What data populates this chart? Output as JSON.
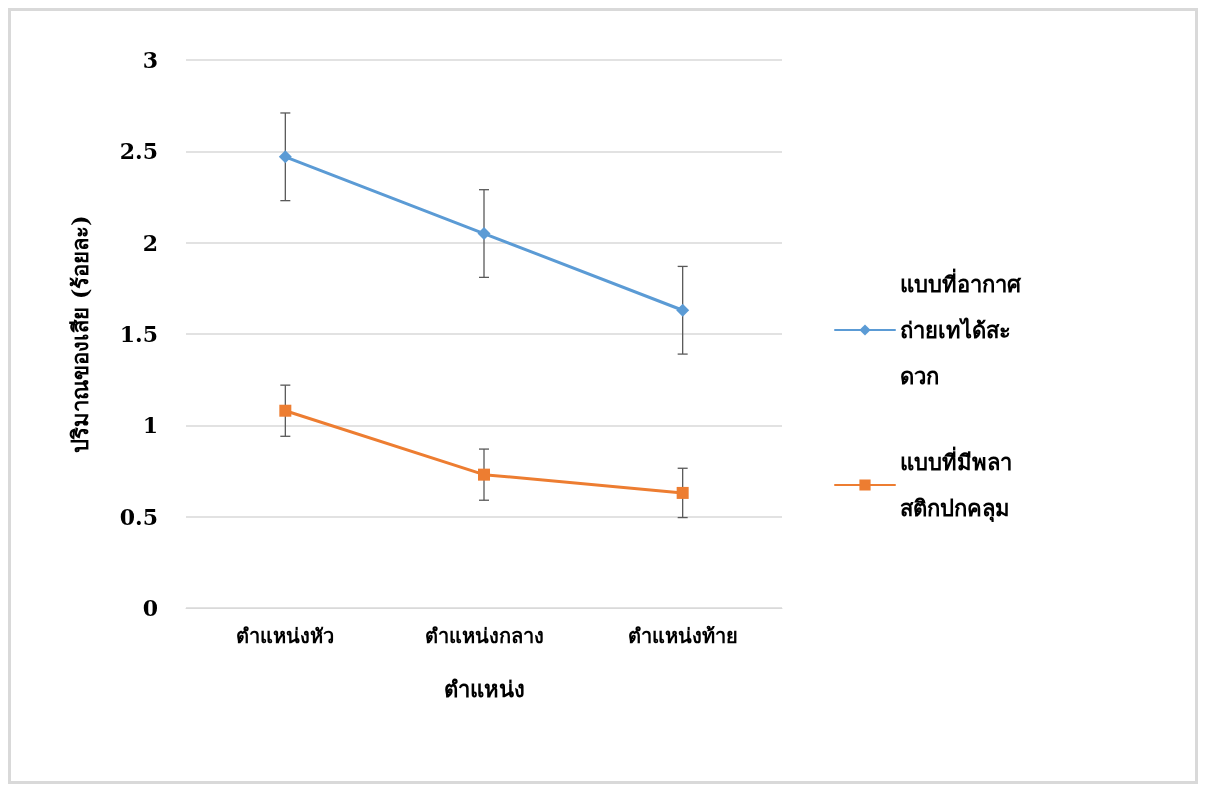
{
  "chart_data": {
    "type": "line",
    "xlabel": "ตำแหน่ง",
    "ylabel": "ปริมาณของเสีย (ร้อยละ)",
    "categories": [
      "ตำแหน่งหัว",
      "ตำแหน่งกลาง",
      "ตำแหน่งท้าย"
    ],
    "series": [
      {
        "name": "แบบที่อากาศถ่ายเทได้สะดวก",
        "color": "#5b9bd5",
        "marker": "diamond",
        "values": [
          2.47,
          2.05,
          1.63
        ],
        "errors": [
          0.24,
          0.24,
          0.24
        ]
      },
      {
        "name": "แบบที่มีพลาสติกปกคลุม",
        "color": "#ed7d31",
        "marker": "square",
        "values": [
          1.08,
          0.73,
          0.63
        ],
        "errors": [
          0.14,
          0.14,
          0.135
        ]
      }
    ],
    "ylim": [
      0,
      3
    ],
    "yticks": [
      0,
      0.5,
      1,
      1.5,
      2,
      2.5,
      3
    ],
    "grid": "y",
    "legend": "right",
    "line_style": "solid"
  }
}
